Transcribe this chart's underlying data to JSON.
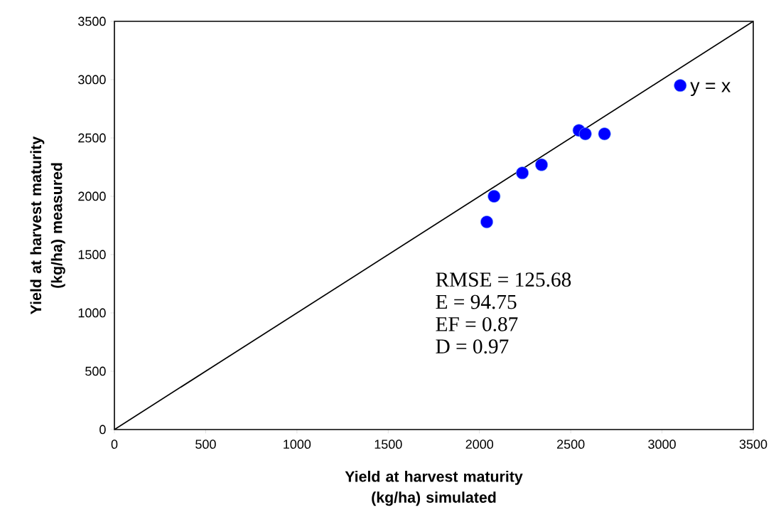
{
  "chart_data": {
    "type": "scatter",
    "xlabel": "Yield at harvest maturity (kg/ha) simulated",
    "ylabel": "Yield at harvest maturity (kg/ha) measured",
    "series": [
      {
        "color": "#0000ff",
        "marker": "circle",
        "x": [
          2040,
          2080,
          2235,
          2340,
          2545,
          2580,
          2685,
          3100
        ],
        "values": [
          1780,
          2000,
          2200,
          2270,
          2565,
          2535,
          2535,
          2950
        ]
      },
      {
        "type": "line",
        "color": "#000000",
        "marker": "none",
        "line_style": "solid",
        "x": [
          0,
          3500
        ],
        "values": [
          0,
          3500
        ]
      }
    ],
    "annotations": [
      "y = x",
      "RMSE = 125.68",
      "E = 94.75",
      "EF = 0.87",
      "D = 0.97"
    ],
    "xlim": [
      0,
      3500
    ],
    "ylim": [
      0,
      3500
    ],
    "xticks": [
      0,
      500,
      1000,
      1500,
      2000,
      2500,
      3000,
      3500
    ],
    "yticks": [
      0,
      500,
      1000,
      1500,
      2000,
      2500,
      3000,
      3500
    ],
    "grid": false,
    "legend": false
  }
}
